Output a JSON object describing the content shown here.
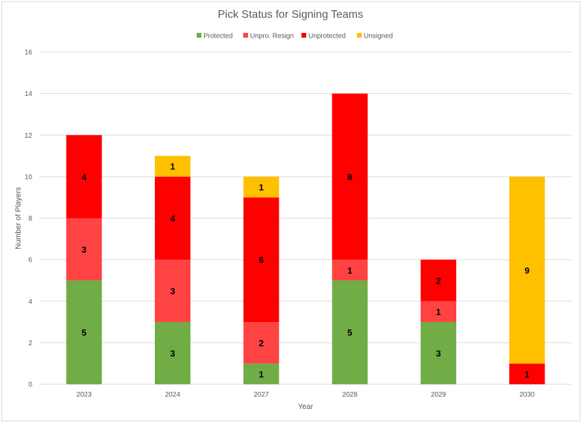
{
  "chart_data": {
    "type": "bar",
    "stacked": true,
    "title": "Pick Status for Signing Teams",
    "xlabel": "Year",
    "ylabel": "Number of Players",
    "categories": [
      "2023",
      "2024",
      "2027",
      "2028",
      "2029",
      "2030"
    ],
    "ylim": [
      0,
      16
    ],
    "yticks": [
      0,
      2,
      4,
      6,
      8,
      10,
      12,
      14,
      16
    ],
    "grid": true,
    "legend": "top",
    "series": [
      {
        "name": "Protected",
        "color": "#70ad47",
        "values": [
          5,
          3,
          1,
          5,
          3,
          0
        ]
      },
      {
        "name": "Unpro. Resign",
        "color": "#ff4343",
        "values": [
          3,
          3,
          2,
          1,
          1,
          0
        ]
      },
      {
        "name": "Unprotected",
        "color": "#ff0000",
        "values": [
          4,
          4,
          6,
          8,
          2,
          1
        ]
      },
      {
        "name": "Unsigned",
        "color": "#ffc000",
        "values": [
          0,
          1,
          1,
          0,
          0,
          9
        ]
      }
    ]
  }
}
